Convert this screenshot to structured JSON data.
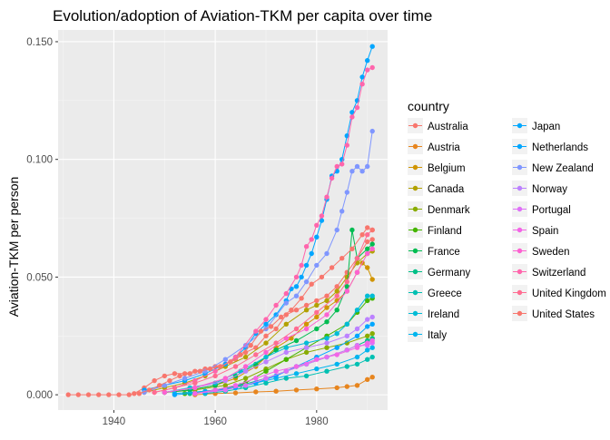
{
  "chart_data": {
    "type": "line",
    "title": "Evolution/adoption of Aviation-TKM per capita over time",
    "xlabel": "",
    "ylabel": "Aviation-TKM per person",
    "xlim": [
      1929,
      1994
    ],
    "ylim": [
      -0.0065,
      0.155
    ],
    "x_ticks": [
      1940,
      1960,
      1980
    ],
    "y_ticks": [
      0.0,
      0.05,
      0.1,
      0.15
    ],
    "y_tick_labels": [
      "0.000",
      "0.050",
      "0.100",
      "0.150"
    ],
    "grid": true,
    "markers": true,
    "legend_title": "country",
    "legend_position": "right",
    "series": [
      {
        "name": "Australia",
        "color": "#F8766D",
        "x": [
          1944,
          1946,
          1948,
          1950,
          1952,
          1954,
          1956,
          1958,
          1960,
          1962,
          1964,
          1966,
          1968,
          1970,
          1972,
          1974,
          1976,
          1978,
          1980,
          1982,
          1984,
          1986,
          1988,
          1990,
          1991
        ],
        "y": [
          0.0005,
          0.003,
          0.006,
          0.008,
          0.009,
          0.009,
          0.01,
          0.011,
          0.012,
          0.013,
          0.015,
          0.018,
          0.02,
          0.025,
          0.028,
          0.034,
          0.036,
          0.038,
          0.04,
          0.042,
          0.046,
          0.052,
          0.058,
          0.065,
          0.066
        ]
      },
      {
        "name": "Austria",
        "color": "#E7851E",
        "x": [
          1956,
          1960,
          1964,
          1968,
          1972,
          1976,
          1980,
          1984,
          1986,
          1988,
          1990,
          1991
        ],
        "y": [
          0.0,
          0.0005,
          0.0008,
          0.0012,
          0.0015,
          0.002,
          0.0025,
          0.003,
          0.0035,
          0.004,
          0.0065,
          0.0075
        ]
      },
      {
        "name": "Belgium",
        "color": "#D09400",
        "x": [
          1950,
          1955,
          1960,
          1964,
          1968,
          1972,
          1975,
          1978,
          1980,
          1982,
          1984,
          1986,
          1988,
          1989,
          1990,
          1991
        ],
        "y": [
          0.001,
          0.002,
          0.004,
          0.007,
          0.012,
          0.02,
          0.024,
          0.03,
          0.033,
          0.037,
          0.04,
          0.044,
          0.052,
          0.056,
          0.054,
          0.049
        ]
      },
      {
        "name": "Canada",
        "color": "#B2A100",
        "x": [
          1946,
          1950,
          1954,
          1958,
          1962,
          1966,
          1970,
          1974,
          1978,
          1980,
          1982,
          1984,
          1986,
          1988,
          1990,
          1991
        ],
        "y": [
          0.001,
          0.003,
          0.005,
          0.008,
          0.012,
          0.016,
          0.022,
          0.03,
          0.036,
          0.038,
          0.04,
          0.044,
          0.05,
          0.056,
          0.06,
          0.061
        ]
      },
      {
        "name": "Denmark",
        "color": "#89AC00",
        "x": [
          1950,
          1956,
          1962,
          1966,
          1970,
          1974,
          1978,
          1982,
          1986,
          1990,
          1991
        ],
        "y": [
          0.001,
          0.002,
          0.004,
          0.007,
          0.011,
          0.015,
          0.018,
          0.02,
          0.022,
          0.025,
          0.026
        ]
      },
      {
        "name": "Finland",
        "color": "#45B500",
        "x": [
          1954,
          1960,
          1966,
          1970,
          1974,
          1978,
          1982,
          1986,
          1988,
          1990,
          1991
        ],
        "y": [
          0.0005,
          0.002,
          0.005,
          0.01,
          0.015,
          0.02,
          0.025,
          0.03,
          0.035,
          0.04,
          0.041
        ]
      },
      {
        "name": "France",
        "color": "#00BC51",
        "x": [
          1950,
          1955,
          1960,
          1964,
          1968,
          1972,
          1976,
          1980,
          1982,
          1984,
          1986,
          1987,
          1988,
          1990,
          1991
        ],
        "y": [
          0.001,
          0.002,
          0.004,
          0.008,
          0.013,
          0.019,
          0.023,
          0.028,
          0.031,
          0.036,
          0.046,
          0.07,
          0.058,
          0.062,
          0.064
        ]
      },
      {
        "name": "Germany",
        "color": "#00C087",
        "x": [
          1955,
          1960,
          1965,
          1970,
          1974,
          1978,
          1982,
          1986,
          1988,
          1990,
          1991
        ],
        "y": [
          0.0005,
          0.002,
          0.004,
          0.007,
          0.01,
          0.013,
          0.016,
          0.019,
          0.021,
          0.023,
          0.024
        ]
      },
      {
        "name": "Greece",
        "color": "#00C0B2",
        "x": [
          1958,
          1962,
          1966,
          1970,
          1974,
          1978,
          1982,
          1986,
          1988,
          1990,
          1991
        ],
        "y": [
          0.0005,
          0.0015,
          0.003,
          0.005,
          0.007,
          0.008,
          0.01,
          0.012,
          0.013,
          0.015,
          0.016
        ]
      },
      {
        "name": "Ireland",
        "color": "#00BCD6",
        "x": [
          1950,
          1955,
          1960,
          1965,
          1970,
          1974,
          1978,
          1982,
          1984,
          1986,
          1988,
          1990,
          1991
        ],
        "y": [
          0.001,
          0.003,
          0.005,
          0.01,
          0.016,
          0.02,
          0.022,
          0.024,
          0.026,
          0.03,
          0.036,
          0.042,
          0.042
        ]
      },
      {
        "name": "Italy",
        "color": "#00B5EE",
        "x": [
          1952,
          1958,
          1964,
          1968,
          1972,
          1976,
          1980,
          1984,
          1988,
          1990,
          1991
        ],
        "y": [
          0.0005,
          0.0015,
          0.003,
          0.005,
          0.007,
          0.009,
          0.011,
          0.013,
          0.016,
          0.019,
          0.02
        ]
      },
      {
        "name": "Japan",
        "color": "#00A7FF",
        "x": [
          1952,
          1958,
          1964,
          1968,
          1972,
          1976,
          1980,
          1984,
          1988,
          1990,
          1991
        ],
        "y": [
          0.0,
          0.001,
          0.003,
          0.005,
          0.008,
          0.012,
          0.016,
          0.02,
          0.025,
          0.029,
          0.03
        ]
      },
      {
        "name": "Netherlands",
        "color": "#00A6FF",
        "x": [
          1946,
          1950,
          1954,
          1958,
          1962,
          1964,
          1966,
          1968,
          1970,
          1972,
          1974,
          1975,
          1976,
          1977,
          1978,
          1979,
          1980,
          1981,
          1982,
          1983,
          1984,
          1985,
          1986,
          1987,
          1988,
          1989,
          1990,
          1991
        ],
        "y": [
          0.002,
          0.004,
          0.006,
          0.009,
          0.013,
          0.016,
          0.02,
          0.026,
          0.03,
          0.034,
          0.04,
          0.045,
          0.046,
          0.05,
          0.055,
          0.06,
          0.067,
          0.074,
          0.083,
          0.093,
          0.095,
          0.1,
          0.11,
          0.12,
          0.125,
          0.135,
          0.142,
          0.148
        ]
      },
      {
        "name": "New Zealand",
        "color": "#7F96FF",
        "x": [
          1946,
          1950,
          1954,
          1958,
          1962,
          1966,
          1970,
          1974,
          1976,
          1978,
          1980,
          1982,
          1984,
          1985,
          1986,
          1987,
          1988,
          1989,
          1990,
          1991
        ],
        "y": [
          0.001,
          0.004,
          0.007,
          0.01,
          0.015,
          0.021,
          0.028,
          0.039,
          0.042,
          0.048,
          0.055,
          0.06,
          0.07,
          0.078,
          0.086,
          0.095,
          0.097,
          0.095,
          0.097,
          0.112
        ]
      },
      {
        "name": "Norway",
        "color": "#BC81FF",
        "x": [
          1950,
          1956,
          1962,
          1966,
          1970,
          1974,
          1978,
          1982,
          1986,
          1988,
          1990,
          1991
        ],
        "y": [
          0.001,
          0.003,
          0.006,
          0.01,
          0.014,
          0.018,
          0.02,
          0.022,
          0.025,
          0.028,
          0.032,
          0.033
        ]
      },
      {
        "name": "Portugal",
        "color": "#DF70F8",
        "x": [
          1956,
          1962,
          1966,
          1970,
          1974,
          1978,
          1982,
          1986,
          1988,
          1990,
          1991
        ],
        "y": [
          0.0005,
          0.002,
          0.004,
          0.007,
          0.01,
          0.013,
          0.016,
          0.019,
          0.021,
          0.021,
          0.022
        ]
      },
      {
        "name": "Spain",
        "color": "#F365E6",
        "x": [
          1956,
          1960,
          1964,
          1968,
          1972,
          1976,
          1980,
          1984,
          1988,
          1990,
          1991
        ],
        "y": [
          0.0005,
          0.002,
          0.004,
          0.007,
          0.01,
          0.012,
          0.015,
          0.017,
          0.02,
          0.022,
          0.023
        ]
      },
      {
        "name": "Sweden",
        "color": "#FD61D1",
        "x": [
          1950,
          1956,
          1962,
          1966,
          1970,
          1974,
          1978,
          1982,
          1986,
          1988,
          1990,
          1991
        ],
        "y": [
          0.001,
          0.003,
          0.007,
          0.012,
          0.018,
          0.024,
          0.028,
          0.034,
          0.044,
          0.052,
          0.06,
          0.062
        ]
      },
      {
        "name": "Switzerland",
        "color": "#FF65AC",
        "x": [
          1948,
          1952,
          1956,
          1960,
          1964,
          1968,
          1970,
          1972,
          1974,
          1976,
          1977,
          1978,
          1979,
          1980,
          1981,
          1982,
          1983,
          1984,
          1985,
          1986,
          1987,
          1988,
          1989,
          1990,
          1991
        ],
        "y": [
          0.001,
          0.003,
          0.006,
          0.01,
          0.016,
          0.027,
          0.032,
          0.038,
          0.043,
          0.05,
          0.055,
          0.063,
          0.066,
          0.072,
          0.076,
          0.084,
          0.092,
          0.097,
          0.098,
          0.106,
          0.118,
          0.122,
          0.132,
          0.138,
          0.139
        ]
      },
      {
        "name": "United Kingdom",
        "color": "#FF6C91",
        "x": [
          1948,
          1952,
          1956,
          1960,
          1964,
          1968,
          1972,
          1976,
          1980,
          1984,
          1986,
          1988,
          1990,
          1991
        ],
        "y": [
          0.001,
          0.003,
          0.005,
          0.008,
          0.012,
          0.017,
          0.022,
          0.028,
          0.035,
          0.042,
          0.048,
          0.058,
          0.068,
          0.07
        ]
      },
      {
        "name": "United States",
        "color": "#F8766D",
        "x": [
          1931,
          1933,
          1935,
          1937,
          1939,
          1941,
          1943,
          1945,
          1947,
          1949,
          1951,
          1953,
          1955,
          1957,
          1959,
          1961,
          1963,
          1965,
          1967,
          1969,
          1971,
          1973,
          1975,
          1977,
          1979,
          1981,
          1983,
          1985,
          1987,
          1989,
          1990,
          1991
        ],
        "y": [
          0.0,
          0.0,
          0.0,
          0.0,
          0.0,
          0.0,
          0.0,
          0.0005,
          0.002,
          0.004,
          0.006,
          0.008,
          0.009,
          0.01,
          0.011,
          0.012,
          0.014,
          0.017,
          0.021,
          0.027,
          0.029,
          0.033,
          0.036,
          0.041,
          0.047,
          0.05,
          0.054,
          0.058,
          0.062,
          0.068,
          0.071,
          0.07
        ]
      }
    ]
  }
}
